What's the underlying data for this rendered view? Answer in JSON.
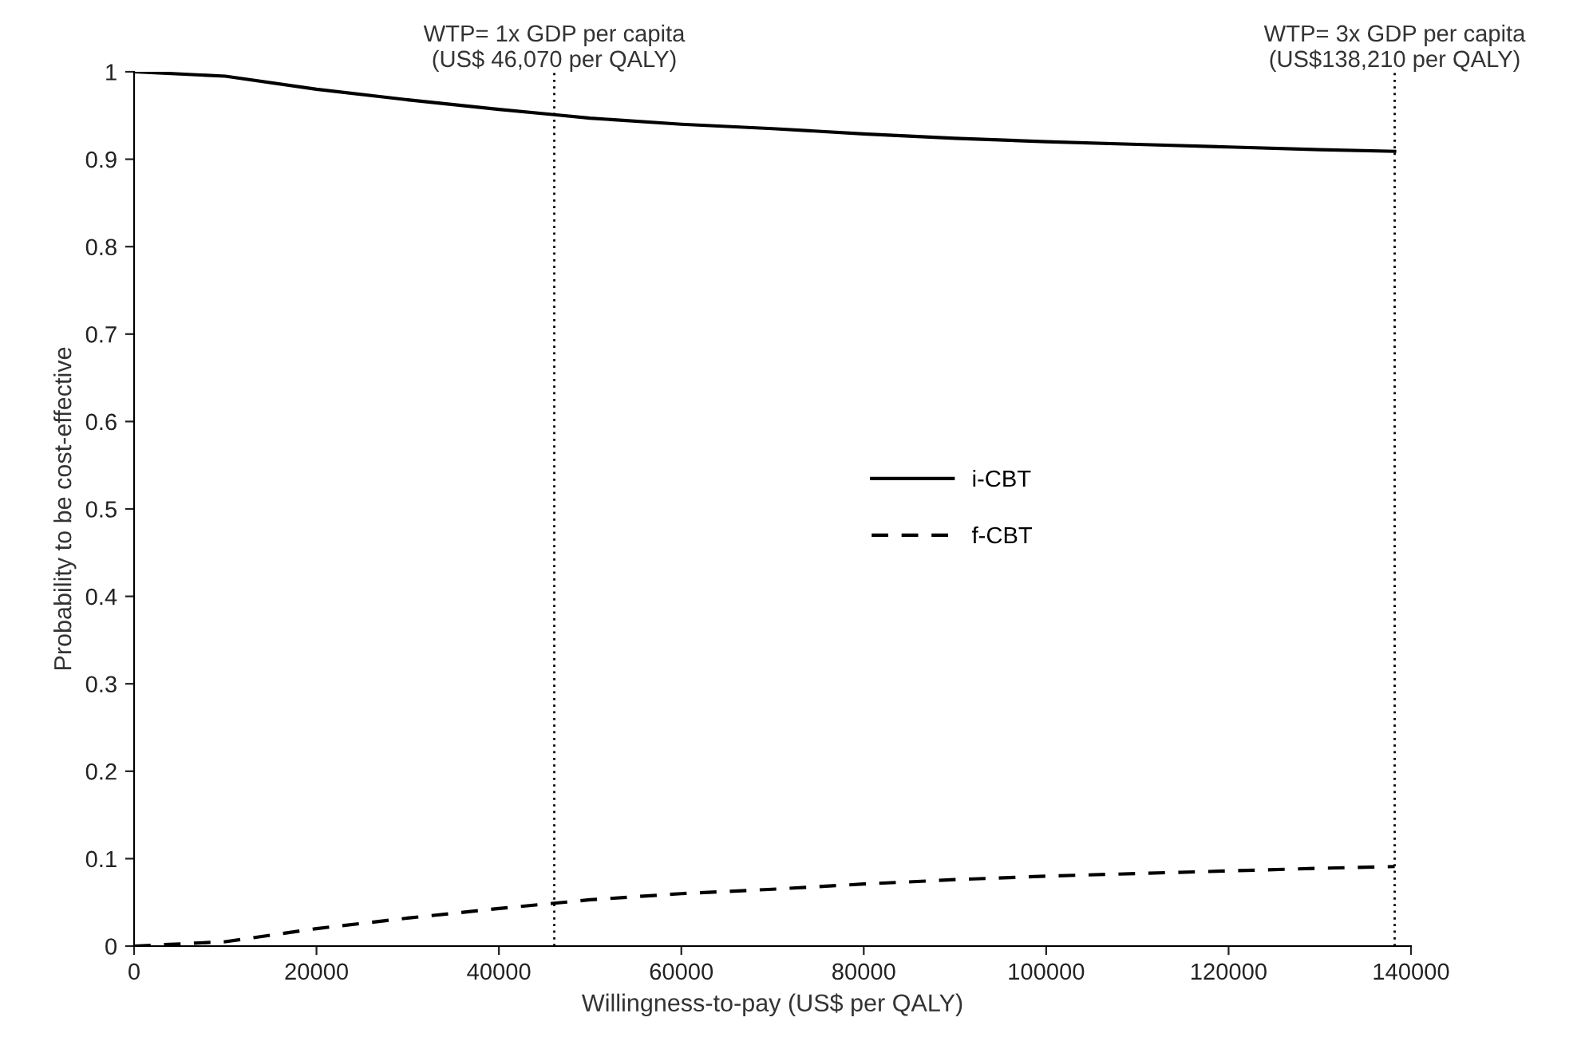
{
  "chart_data": {
    "type": "line",
    "xlabel": "Willingness-to-pay (US$ per QALY)",
    "ylabel": "Probability to be cost-effective",
    "x": [
      0,
      10000,
      20000,
      30000,
      40000,
      46070,
      50000,
      60000,
      70000,
      80000,
      90000,
      100000,
      110000,
      120000,
      130000,
      138210
    ],
    "series": [
      {
        "name": "i-CBT",
        "color": "#000000",
        "line_style": "solid",
        "values": [
          1,
          0.995,
          0.98,
          0.968,
          0.957,
          0.951,
          0.947,
          0.94,
          0.935,
          0.929,
          0.924,
          0.92,
          0.917,
          0.914,
          0.911,
          0.909
        ]
      },
      {
        "name": "f-CBT",
        "color": "#000000",
        "line_style": "dashed",
        "values": [
          0,
          0.005,
          0.02,
          0.032,
          0.043,
          0.049,
          0.053,
          0.06,
          0.065,
          0.071,
          0.076,
          0.08,
          0.083,
          0.086,
          0.089,
          0.091
        ]
      }
    ],
    "xlim": [
      0,
      140000
    ],
    "ylim": [
      0,
      1
    ],
    "xticks": [
      0,
      20000,
      40000,
      60000,
      80000,
      100000,
      120000,
      140000
    ],
    "yticks": [
      0,
      0.1,
      0.2,
      0.3,
      0.4,
      0.5,
      0.6,
      0.7,
      0.8,
      0.9,
      1
    ],
    "ref_lines": [
      {
        "axis": "x",
        "value": 46070,
        "label": "WTP= 1x GDP per capita\n(US$ 46,070 per QALY)",
        "color": "#000000",
        "line_style": "dotted"
      },
      {
        "axis": "x",
        "value": 138210,
        "label": "WTP= 3x GDP per capita\n(US$138,210 per QALY)",
        "color": "#000000",
        "line_style": "dotted"
      }
    ],
    "grid": false,
    "legend": "right",
    "marker": "none"
  }
}
